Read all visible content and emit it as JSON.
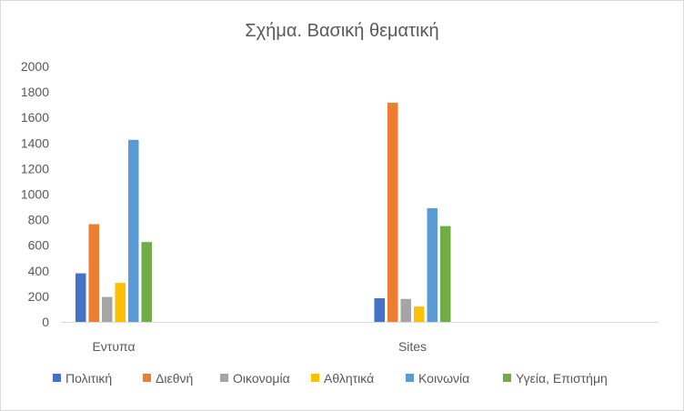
{
  "chart_data": {
    "type": "bar",
    "title": "Σχήμα. Βασική θεματική",
    "xlabel": "",
    "ylabel": "",
    "ylim": [
      0,
      2000
    ],
    "yticks": [
      0,
      200,
      400,
      600,
      800,
      1000,
      1200,
      1400,
      1600,
      1800,
      2000
    ],
    "ytick_labels": [
      "0",
      "200",
      "400",
      "600",
      "800",
      "1000",
      "1200",
      "1400",
      "1600",
      "1800",
      "2000"
    ],
    "grid": false,
    "legend_position": "bottom",
    "categories": [
      "Εντυπα",
      "Sites"
    ],
    "series": [
      {
        "name": "Πολιτική",
        "color": "#4472c4",
        "values": [
          380,
          185
        ]
      },
      {
        "name": "Διεθνή",
        "color": "#ed7d31",
        "values": [
          765,
          1715
        ]
      },
      {
        "name": "Οικονομία",
        "color": "#a5a5a5",
        "values": [
          195,
          180
        ]
      },
      {
        "name": "Αθλητικά",
        "color": "#ffc000",
        "values": [
          305,
          120
        ]
      },
      {
        "name": "Κοινωνία",
        "color": "#5b9bd5",
        "values": [
          1425,
          890
        ]
      },
      {
        "name": "Υγεία, Επιστήμη",
        "color": "#70ad47",
        "values": [
          625,
          750
        ]
      }
    ]
  }
}
